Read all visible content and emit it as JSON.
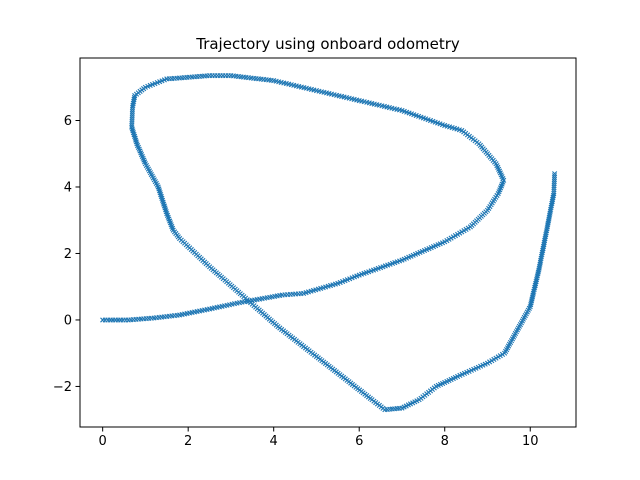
{
  "chart_data": {
    "type": "scatter",
    "title": "Trajectory using onboard odometry",
    "xlabel": "",
    "ylabel": "",
    "xlim": [
      -0.53,
      11.07
    ],
    "ylim": [
      -3.22,
      7.88
    ],
    "xticks": [
      0,
      2,
      4,
      6,
      8,
      10
    ],
    "yticks": [
      -2,
      0,
      2,
      4,
      6
    ],
    "xtick_labels": [
      "0",
      "2",
      "4",
      "6",
      "8",
      "10"
    ],
    "ytick_labels": [
      "−2",
      "0",
      "2",
      "4",
      "6"
    ],
    "grid": false,
    "legend": "none",
    "marker": "x",
    "series": [
      {
        "color": "#1f77b4",
        "path": [
          [
            0.0,
            0.0
          ],
          [
            0.6,
            0.0
          ],
          [
            1.2,
            0.06
          ],
          [
            1.8,
            0.15
          ],
          [
            2.5,
            0.33
          ],
          [
            3.2,
            0.52
          ],
          [
            4.2,
            0.75
          ],
          [
            4.7,
            0.8
          ],
          [
            5.5,
            1.1
          ],
          [
            6.0,
            1.35
          ],
          [
            7.0,
            1.8
          ],
          [
            8.0,
            2.35
          ],
          [
            8.6,
            2.8
          ],
          [
            9.0,
            3.3
          ],
          [
            9.25,
            3.8
          ],
          [
            9.38,
            4.2
          ],
          [
            9.2,
            4.7
          ],
          [
            8.8,
            5.3
          ],
          [
            8.4,
            5.7
          ],
          [
            8.0,
            5.85
          ],
          [
            7.0,
            6.3
          ],
          [
            6.0,
            6.6
          ],
          [
            5.0,
            6.9
          ],
          [
            4.0,
            7.2
          ],
          [
            3.0,
            7.35
          ],
          [
            2.5,
            7.35
          ],
          [
            1.5,
            7.25
          ],
          [
            1.0,
            7.0
          ],
          [
            0.75,
            6.75
          ],
          [
            0.7,
            6.4
          ],
          [
            0.68,
            5.8
          ],
          [
            0.8,
            5.3
          ],
          [
            1.0,
            4.7
          ],
          [
            1.3,
            4.0
          ],
          [
            1.5,
            3.2
          ],
          [
            1.65,
            2.7
          ],
          [
            1.8,
            2.45
          ],
          [
            2.5,
            1.6
          ],
          [
            3.3,
            0.7
          ],
          [
            4.1,
            -0.2
          ],
          [
            5.0,
            -1.1
          ],
          [
            5.8,
            -1.9
          ],
          [
            6.3,
            -2.4
          ],
          [
            6.6,
            -2.7
          ],
          [
            7.0,
            -2.65
          ],
          [
            7.4,
            -2.4
          ],
          [
            7.8,
            -2.0
          ],
          [
            8.3,
            -1.7
          ],
          [
            9.0,
            -1.3
          ],
          [
            9.4,
            -1.0
          ],
          [
            9.7,
            -0.3
          ],
          [
            10.0,
            0.4
          ],
          [
            10.2,
            1.5
          ],
          [
            10.4,
            2.8
          ],
          [
            10.55,
            3.8
          ],
          [
            10.57,
            4.4
          ]
        ]
      }
    ]
  }
}
